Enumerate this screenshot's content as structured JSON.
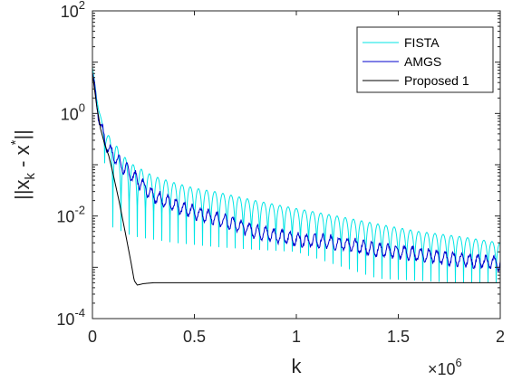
{
  "chart_data": {
    "type": "line",
    "xlabel": "k",
    "ylabel": "||xₖ - x*||",
    "ylabel_parts": {
      "base": "||x",
      "sub": "k",
      "mid": " - x",
      "sup": "*",
      "end": "||"
    },
    "x_multiplier": {
      "base": "×10",
      "exp": "6"
    },
    "xlim": [
      0,
      2000000
    ],
    "ylim": [
      0.0001,
      100
    ],
    "yscale": "log",
    "grid": false,
    "legend_position": "top-right",
    "x_ticks": [
      {
        "value": 0,
        "label": "0"
      },
      {
        "value": 500000,
        "label": "0.5"
      },
      {
        "value": 1000000,
        "label": "1"
      },
      {
        "value": 1500000,
        "label": "1.5"
      },
      {
        "value": 2000000,
        "label": "2"
      }
    ],
    "y_ticks": [
      {
        "value": 0.0001,
        "base": "10",
        "exp": "-4"
      },
      {
        "value": 0.01,
        "base": "10",
        "exp": "-2"
      },
      {
        "value": 1,
        "base": "10",
        "exp": "0"
      },
      {
        "value": 100,
        "base": "10",
        "exp": "2"
      }
    ],
    "series": [
      {
        "name": "FISTA",
        "color": "#00e5e5",
        "pattern": "oscillating",
        "oscillation_period": 40000,
        "upper_envelope": {
          "x": [
            0,
            30000,
            60000,
            100000,
            150000,
            200000,
            300000,
            400000,
            500000,
            600000,
            800000,
            1000000,
            1200000,
            1400000,
            1600000,
            1800000,
            2000000
          ],
          "y": [
            8,
            1.2,
            0.45,
            0.3,
            0.15,
            0.1,
            0.06,
            0.045,
            0.035,
            0.03,
            0.02,
            0.014,
            0.01,
            0.007,
            0.005,
            0.004,
            0.003
          ]
        },
        "lower_envelope": {
          "x": [
            0,
            100000,
            200000,
            400000,
            600000,
            800000,
            1000000,
            1400000,
            1800000,
            2000000
          ],
          "y": [
            8,
            0.006,
            0.004,
            0.003,
            0.0025,
            0.0022,
            0.002,
            0.0006,
            0.0005,
            0.0005
          ]
        }
      },
      {
        "name": "AMGS",
        "color": "#0000cd",
        "pattern": "noisy",
        "x": [
          0,
          20000,
          40000,
          60000,
          80000,
          100000,
          150000,
          200000,
          300000,
          400000,
          500000,
          600000,
          700000,
          800000,
          1000000,
          1200000,
          1400000,
          1600000,
          1800000,
          2000000
        ],
        "y": [
          6,
          1.6,
          0.6,
          0.3,
          0.2,
          0.16,
          0.09,
          0.06,
          0.025,
          0.016,
          0.012,
          0.009,
          0.007,
          0.005,
          0.0035,
          0.003,
          0.0022,
          0.0018,
          0.0014,
          0.0012
        ]
      },
      {
        "name": "Proposed 1",
        "color": "#000000",
        "pattern": "smooth",
        "x": [
          0,
          20000,
          40000,
          60000,
          80000,
          100000,
          130000,
          160000,
          190000,
          205000,
          220000,
          250000,
          300000,
          400000,
          600000,
          1000000,
          1500000,
          2000000
        ],
        "y": [
          6,
          1.5,
          0.5,
          0.25,
          0.15,
          0.07,
          0.02,
          0.005,
          0.0012,
          0.00055,
          0.00045,
          0.00048,
          0.0005,
          0.0005,
          0.0005,
          0.0005,
          0.0005,
          0.0005
        ]
      }
    ]
  }
}
